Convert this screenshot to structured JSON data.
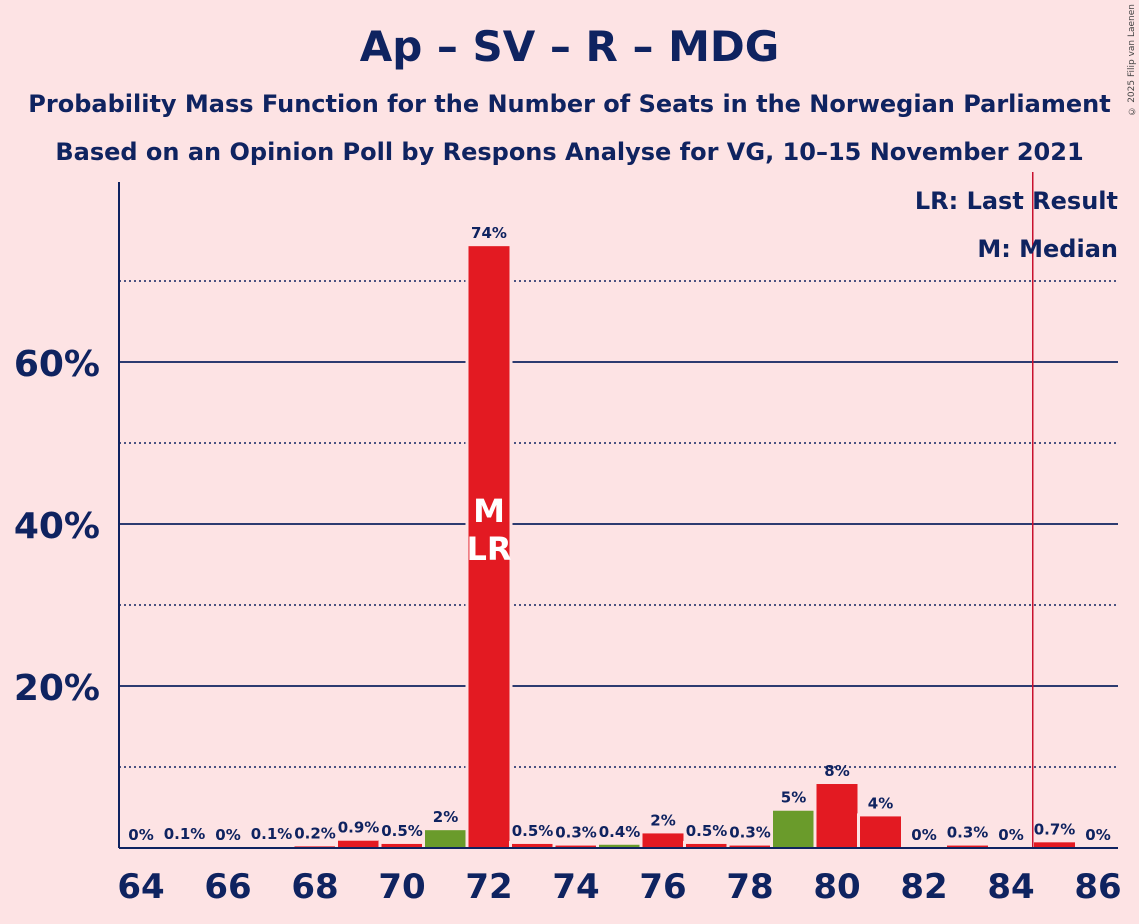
{
  "title": "Ap – SV – R – MDG",
  "subtitle_1": "Probability Mass Function for the Number of Seats in the Norwegian Parliament",
  "subtitle_2": "Based on an Opinion Poll by Respons Analyse for VG, 10–15 November 2021",
  "copyright": "© 2025 Filip van Laenen",
  "legend": {
    "lr": "LR: Last Result",
    "median": "M: Median"
  },
  "colors": {
    "background": "#fde3e4",
    "red": "#e31a22",
    "green": "#6a9b2b",
    "axis": "#0f2360",
    "last_result_line": "#c8102e"
  },
  "chart_data": {
    "type": "bar",
    "x": [
      64,
      65,
      66,
      67,
      68,
      69,
      70,
      71,
      72,
      73,
      74,
      75,
      76,
      77,
      78,
      79,
      80,
      81,
      82,
      83,
      84,
      85,
      86
    ],
    "values": [
      0,
      0.1,
      0,
      0.1,
      0.2,
      0.9,
      0.5,
      2.2,
      74.3,
      0.5,
      0.3,
      0.4,
      1.8,
      0.5,
      0.3,
      4.6,
      7.9,
      3.9,
      0,
      0.3,
      0,
      0.7,
      0
    ],
    "labels": [
      "0%",
      "0.1%",
      "0%",
      "0.1%",
      "0.2%",
      "0.9%",
      "0.5%",
      "2%",
      "74%",
      "0.5%",
      "0.3%",
      "0.4%",
      "2%",
      "0.5%",
      "0.3%",
      "5%",
      "8%",
      "4%",
      "0%",
      "0.3%",
      "0%",
      "0.7%",
      "0%"
    ],
    "bar_colors": [
      "red",
      "red",
      "red",
      "red",
      "red",
      "red",
      "red",
      "green",
      "red",
      "red",
      "red",
      "green",
      "red",
      "red",
      "red",
      "green",
      "red",
      "red",
      "red",
      "red",
      "red",
      "red",
      "red"
    ],
    "ylim": [
      0,
      81
    ],
    "y_ticks": [
      20,
      40,
      60
    ],
    "y_tick_labels": [
      "20%",
      "40%",
      "60%"
    ],
    "x_tick_labels": [
      "64",
      "66",
      "68",
      "70",
      "72",
      "74",
      "76",
      "78",
      "80",
      "82",
      "84",
      "86"
    ],
    "median_seat": 72,
    "median_label": "M",
    "last_result_seat": 72,
    "last_result_label": "LR",
    "majority_line_seat": 84.5,
    "gridlines": "solid at 20% steps, dotted at 10% intermediate"
  }
}
